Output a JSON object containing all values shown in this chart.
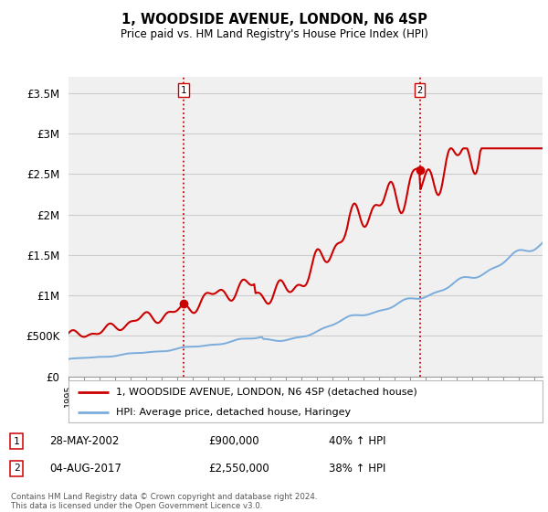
{
  "title": "1, WOODSIDE AVENUE, LONDON, N6 4SP",
  "subtitle": "Price paid vs. HM Land Registry's House Price Index (HPI)",
  "legend_line1": "1, WOODSIDE AVENUE, LONDON, N6 4SP (detached house)",
  "legend_line2": "HPI: Average price, detached house, Haringey",
  "footer": "Contains HM Land Registry data © Crown copyright and database right 2024.\nThis data is licensed under the Open Government Licence v3.0.",
  "annotation1": {
    "label": "1",
    "date": "28-MAY-2002",
    "price": "£900,000",
    "hpi": "40% ↑ HPI"
  },
  "annotation2": {
    "label": "2",
    "date": "04-AUG-2017",
    "price": "£2,550,000",
    "hpi": "38% ↑ HPI"
  },
  "ylim": [
    0,
    3700000
  ],
  "yticks": [
    0,
    500000,
    1000000,
    1500000,
    2000000,
    2500000,
    3000000,
    3500000
  ],
  "ytick_labels": [
    "£0",
    "£500K",
    "£1M",
    "£1.5M",
    "£2M",
    "£2.5M",
    "£3M",
    "£3.5M"
  ],
  "red_color": "#cc0000",
  "blue_color": "#7aacdc",
  "bg_color": "#f0f0f0",
  "grid_color": "#cccccc",
  "vline_color": "#cc0000",
  "sale1_x": 2002.4,
  "sale1_y": 900000,
  "sale2_x": 2017.6,
  "sale2_y": 2550000,
  "xmin": 1995,
  "xmax": 2025.5
}
